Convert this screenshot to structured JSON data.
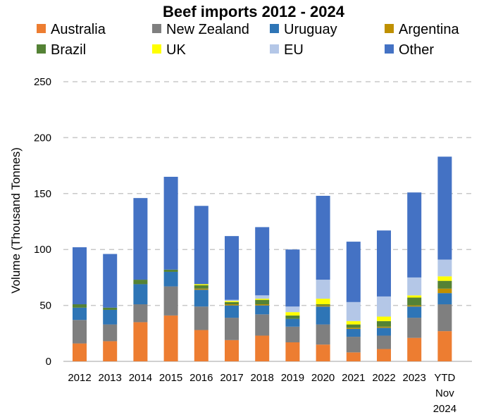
{
  "chart_data": {
    "type": "bar",
    "stacked": true,
    "title": "Beef imports 2012 - 2024",
    "ylabel": "Volume (Thousand Tonnes)",
    "xlabel": "",
    "ylim": [
      0,
      250
    ],
    "yticks": [
      0,
      50,
      100,
      150,
      200,
      250
    ],
    "grid": true,
    "legend_position": "top",
    "categories": [
      "2012",
      "2013",
      "2014",
      "2015",
      "2016",
      "2017",
      "2018",
      "2019",
      "2020",
      "2021",
      "2022",
      "2023",
      "YTD Nov 2024"
    ],
    "category_lines": [
      [
        "2012"
      ],
      [
        "2013"
      ],
      [
        "2014"
      ],
      [
        "2015"
      ],
      [
        "2016"
      ],
      [
        "2017"
      ],
      [
        "2018"
      ],
      [
        "2019"
      ],
      [
        "2020"
      ],
      [
        "2021"
      ],
      [
        "2022"
      ],
      [
        "2023"
      ],
      [
        "YTD",
        "Nov",
        "2024"
      ]
    ],
    "series": [
      {
        "name": "Australia",
        "color": "#ED7D31",
        "values": [
          16,
          18,
          35,
          41,
          28,
          19,
          23,
          17,
          15,
          8,
          11,
          21,
          27
        ]
      },
      {
        "name": "New Zealand",
        "color": "#7F7F7F",
        "values": [
          21,
          15,
          16,
          26,
          21,
          20,
          19,
          14,
          18,
          14,
          12,
          18,
          24
        ]
      },
      {
        "name": "Uruguay",
        "color": "#2E75B6",
        "values": [
          11,
          13,
          18,
          13,
          15,
          11,
          8,
          7,
          16,
          7,
          7,
          10,
          10
        ]
      },
      {
        "name": "Argentina",
        "color": "#BF9000",
        "values": [
          0,
          0,
          0,
          0,
          1,
          1,
          1,
          0,
          1,
          1,
          1,
          1,
          4
        ]
      },
      {
        "name": "Brazil",
        "color": "#548235",
        "values": [
          3,
          2,
          4,
          2,
          3,
          2,
          4,
          3,
          1,
          3,
          5,
          7,
          7
        ]
      },
      {
        "name": "UK",
        "color": "#FFFF00",
        "values": [
          0,
          0,
          0,
          0,
          1,
          1,
          1,
          3,
          5,
          3,
          4,
          2,
          4
        ]
      },
      {
        "name": "EU",
        "color": "#B4C7E7",
        "values": [
          0,
          0,
          0,
          0,
          0,
          1,
          3,
          5,
          17,
          17,
          18,
          16,
          15
        ]
      },
      {
        "name": "Other",
        "color": "#4472C4",
        "values": [
          51,
          48,
          73,
          83,
          70,
          57,
          61,
          51,
          75,
          54,
          59,
          76,
          92
        ]
      }
    ]
  }
}
